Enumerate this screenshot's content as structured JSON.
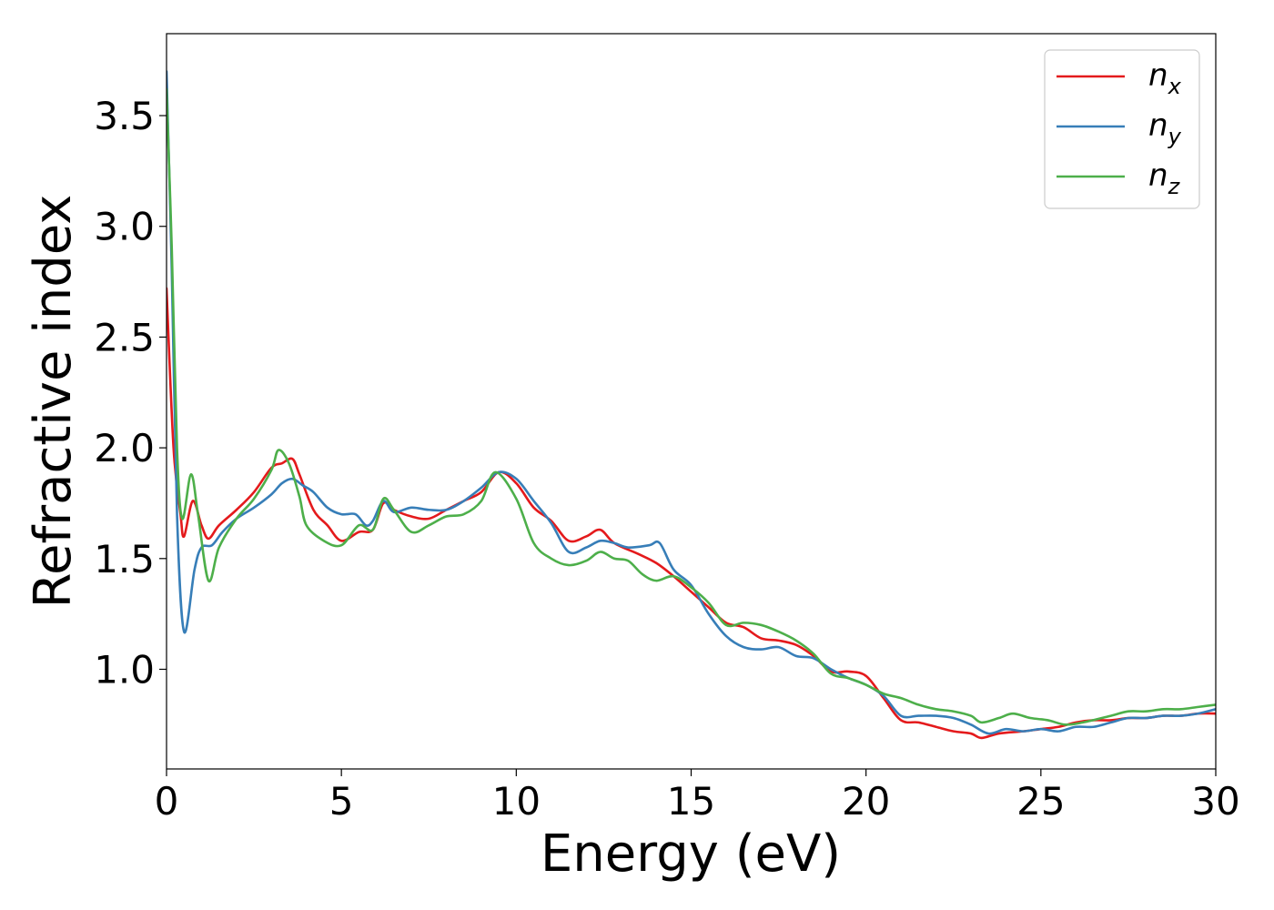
{
  "chart_data": {
    "type": "line",
    "title": "",
    "xlabel": "Energy (eV)",
    "ylabel": "Refractive index",
    "xlim": [
      0,
      30
    ],
    "ylim": [
      0.55,
      3.87
    ],
    "xticks": [
      0,
      5,
      10,
      15,
      20,
      25,
      30
    ],
    "xtick_labels": [
      "0",
      "5",
      "10",
      "15",
      "20",
      "25",
      "30"
    ],
    "yticks": [
      1.0,
      1.5,
      2.0,
      2.5,
      3.0,
      3.5
    ],
    "ytick_labels": [
      "1.0",
      "1.5",
      "2.0",
      "2.5",
      "3.0",
      "3.5"
    ],
    "grid": false,
    "legend": {
      "position": "top-right"
    },
    "series": [
      {
        "name": "n",
        "subscript": "x",
        "color": "#e41a1c",
        "x": [
          0,
          0.2,
          0.4,
          0.5,
          0.75,
          1.0,
          1.2,
          1.5,
          2.0,
          2.5,
          3.0,
          3.3,
          3.6,
          3.8,
          4.2,
          4.6,
          5.0,
          5.5,
          5.9,
          6.2,
          6.5,
          7.0,
          7.5,
          8.0,
          8.5,
          9.0,
          9.5,
          10.0,
          10.5,
          11.0,
          11.5,
          12.0,
          12.4,
          12.8,
          13.5,
          14.0,
          14.5,
          15.0,
          15.5,
          16.0,
          16.5,
          17.0,
          17.5,
          18.0,
          18.5,
          19.0,
          19.5,
          20.0,
          20.5,
          21.0,
          21.5,
          22.0,
          22.5,
          23.0,
          23.3,
          23.8,
          24.5,
          25.0,
          25.5,
          26.0,
          26.5,
          27.0,
          27.5,
          28.0,
          28.5,
          29.0,
          29.5,
          30.0
        ],
        "y": [
          2.72,
          2.0,
          1.7,
          1.6,
          1.76,
          1.65,
          1.59,
          1.65,
          1.72,
          1.8,
          1.91,
          1.93,
          1.95,
          1.88,
          1.72,
          1.65,
          1.58,
          1.62,
          1.63,
          1.75,
          1.72,
          1.69,
          1.68,
          1.72,
          1.76,
          1.8,
          1.89,
          1.84,
          1.73,
          1.67,
          1.58,
          1.6,
          1.63,
          1.57,
          1.52,
          1.48,
          1.42,
          1.35,
          1.28,
          1.21,
          1.19,
          1.14,
          1.13,
          1.11,
          1.06,
          0.99,
          0.99,
          0.97,
          0.87,
          0.77,
          0.76,
          0.74,
          0.72,
          0.71,
          0.69,
          0.71,
          0.72,
          0.73,
          0.74,
          0.76,
          0.77,
          0.77,
          0.78,
          0.78,
          0.79,
          0.79,
          0.8,
          0.8
        ]
      },
      {
        "name": "n",
        "subscript": "y",
        "color": "#377eb8",
        "x": [
          0,
          0.15,
          0.3,
          0.5,
          0.8,
          1.0,
          1.3,
          1.6,
          2.0,
          2.5,
          3.0,
          3.3,
          3.6,
          3.9,
          4.2,
          4.6,
          5.0,
          5.4,
          5.7,
          5.9,
          6.2,
          6.5,
          7.0,
          7.5,
          8.0,
          8.5,
          9.0,
          9.5,
          10.0,
          10.5,
          11.0,
          11.5,
          12.0,
          12.4,
          12.8,
          13.2,
          13.8,
          14.1,
          14.5,
          15.0,
          15.5,
          16.0,
          16.5,
          17.0,
          17.5,
          18.0,
          18.5,
          19.0,
          19.5,
          20.0,
          20.5,
          21.0,
          21.5,
          22.0,
          22.5,
          23.0,
          23.5,
          24.0,
          24.5,
          25.0,
          25.5,
          26.0,
          26.5,
          27.0,
          27.5,
          28.0,
          28.5,
          29.0,
          29.5,
          30.0
        ],
        "y": [
          3.7,
          2.8,
          1.7,
          1.17,
          1.45,
          1.55,
          1.56,
          1.62,
          1.68,
          1.73,
          1.79,
          1.84,
          1.86,
          1.83,
          1.8,
          1.73,
          1.7,
          1.7,
          1.65,
          1.67,
          1.76,
          1.71,
          1.73,
          1.72,
          1.72,
          1.76,
          1.82,
          1.89,
          1.86,
          1.76,
          1.66,
          1.53,
          1.55,
          1.58,
          1.57,
          1.55,
          1.56,
          1.57,
          1.45,
          1.38,
          1.25,
          1.15,
          1.1,
          1.09,
          1.1,
          1.06,
          1.05,
          1.0,
          0.96,
          0.93,
          0.88,
          0.79,
          0.79,
          0.79,
          0.78,
          0.75,
          0.71,
          0.73,
          0.72,
          0.73,
          0.72,
          0.74,
          0.74,
          0.76,
          0.78,
          0.78,
          0.79,
          0.79,
          0.8,
          0.82
        ]
      },
      {
        "name": "n",
        "subscript": "z",
        "color": "#4daf4a",
        "x": [
          0,
          0.15,
          0.3,
          0.45,
          0.7,
          0.9,
          1.2,
          1.5,
          2.0,
          2.5,
          3.0,
          3.2,
          3.5,
          3.8,
          4.0,
          4.5,
          5.0,
          5.5,
          5.9,
          6.2,
          6.5,
          7.0,
          7.5,
          8.0,
          8.5,
          9.0,
          9.4,
          10.0,
          10.5,
          11.0,
          11.5,
          12.0,
          12.4,
          12.8,
          13.2,
          13.6,
          14.0,
          14.5,
          15.0,
          15.5,
          16.0,
          16.5,
          17.0,
          17.5,
          18.0,
          18.5,
          19.0,
          19.5,
          20.0,
          20.5,
          21.0,
          21.5,
          22.0,
          22.5,
          23.0,
          23.3,
          23.8,
          24.2,
          24.7,
          25.2,
          25.7,
          26.2,
          27.0,
          27.5,
          28.0,
          28.5,
          29.0,
          29.5,
          30.0
        ],
        "y": [
          3.62,
          2.9,
          2.0,
          1.68,
          1.88,
          1.7,
          1.4,
          1.55,
          1.68,
          1.77,
          1.9,
          1.99,
          1.93,
          1.78,
          1.65,
          1.58,
          1.56,
          1.65,
          1.63,
          1.77,
          1.72,
          1.62,
          1.65,
          1.69,
          1.7,
          1.76,
          1.89,
          1.77,
          1.57,
          1.5,
          1.47,
          1.49,
          1.53,
          1.5,
          1.49,
          1.43,
          1.4,
          1.42,
          1.37,
          1.3,
          1.2,
          1.21,
          1.2,
          1.17,
          1.13,
          1.07,
          0.98,
          0.96,
          0.93,
          0.89,
          0.87,
          0.84,
          0.82,
          0.81,
          0.79,
          0.76,
          0.78,
          0.8,
          0.78,
          0.77,
          0.75,
          0.76,
          0.79,
          0.81,
          0.81,
          0.82,
          0.82,
          0.83,
          0.84
        ]
      }
    ]
  }
}
